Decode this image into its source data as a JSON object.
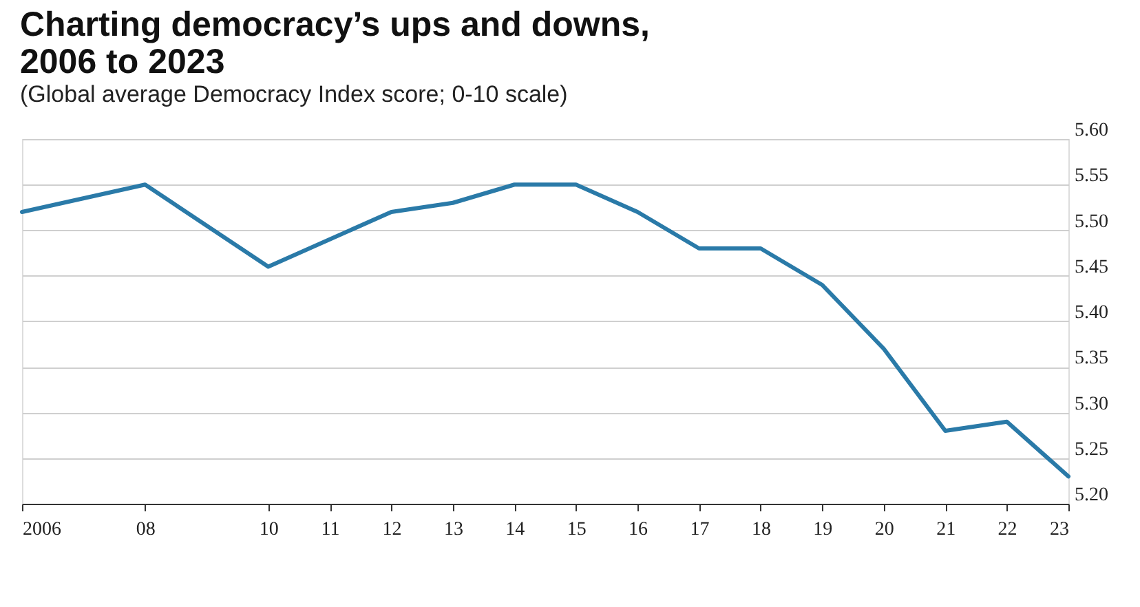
{
  "chart_data": {
    "type": "line",
    "title": "Charting democracy’s ups and downs,\n2006 to 2023",
    "subtitle": "(Global average Democracy Index score; 0-10 scale)",
    "x": [
      2006,
      2008,
      2010,
      2011,
      2012,
      2013,
      2014,
      2015,
      2016,
      2017,
      2018,
      2019,
      2020,
      2021,
      2022,
      2023
    ],
    "series": [
      {
        "color": "#2a7aa8",
        "values": [
          5.52,
          5.55,
          5.46,
          5.49,
          5.52,
          5.53,
          5.55,
          5.55,
          5.52,
          5.48,
          5.48,
          5.44,
          5.37,
          5.28,
          5.29,
          5.23
        ]
      }
    ],
    "xlim": [
      2006,
      2023
    ],
    "xticks": [
      {
        "value": 2006,
        "label": "2006"
      },
      {
        "value": 2008,
        "label": "08"
      },
      {
        "value": 2010,
        "label": "10"
      },
      {
        "value": 2011,
        "label": "11"
      },
      {
        "value": 2012,
        "label": "12"
      },
      {
        "value": 2013,
        "label": "13"
      },
      {
        "value": 2014,
        "label": "14"
      },
      {
        "value": 2015,
        "label": "15"
      },
      {
        "value": 2016,
        "label": "16"
      },
      {
        "value": 2017,
        "label": "17"
      },
      {
        "value": 2018,
        "label": "18"
      },
      {
        "value": 2019,
        "label": "19"
      },
      {
        "value": 2020,
        "label": "20"
      },
      {
        "value": 2021,
        "label": "21"
      },
      {
        "value": 2022,
        "label": "22"
      },
      {
        "value": 2023,
        "label": "23"
      }
    ],
    "ylim": [
      5.2,
      5.6
    ],
    "yticks": [
      {
        "value": 5.2,
        "label": "5.20"
      },
      {
        "value": 5.25,
        "label": "5.25"
      },
      {
        "value": 5.3,
        "label": "5.30"
      },
      {
        "value": 5.35,
        "label": "5.35"
      },
      {
        "value": 5.4,
        "label": "5.40"
      },
      {
        "value": 5.45,
        "label": "5.45"
      },
      {
        "value": 5.5,
        "label": "5.50"
      },
      {
        "value": 5.55,
        "label": "5.55"
      },
      {
        "value": 5.6,
        "label": "5.60"
      }
    ],
    "grid": "y",
    "legend": false,
    "marker": "none",
    "line_style": "solid"
  }
}
